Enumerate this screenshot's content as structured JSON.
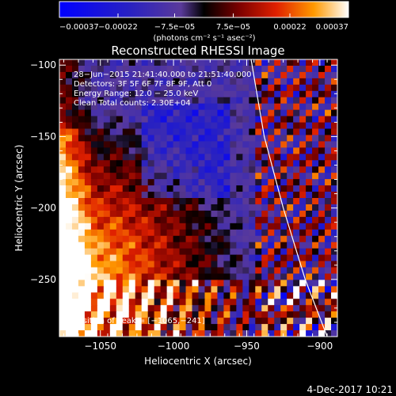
{
  "chart_data": {
    "type": "heatmap",
    "title": "Reconstructed RHESSI Image",
    "xlabel": "Heliocentric X (arcsec)",
    "ylabel": "Heliocentric Y (arcsec)",
    "xlim": [
      -1078,
      -888
    ],
    "ylim": [
      -290,
      -96
    ],
    "xticks": [
      -1050,
      -1000,
      -950,
      -900
    ],
    "xtick_labels": [
      "−1050",
      "−1000",
      "−950",
      "−900"
    ],
    "yticks": [
      -100,
      -150,
      -200,
      -250
    ],
    "ytick_labels": [
      "−100",
      "−150",
      "−200",
      "−250"
    ],
    "colorbar": {
      "min": -0.00037,
      "max": 0.00037,
      "ticks": [
        -0.00037,
        -0.00022,
        -7.5e-05,
        7.5e-05,
        0.00022,
        0.00037
      ],
      "tick_labels": [
        "−0.00037",
        "−0.00022",
        "−7.5e−05",
        "7.5e−05",
        "0.00022",
        "0.00037"
      ],
      "unit_label": "(photons cm⁻² s⁻¹ asec⁻²)"
    },
    "annotations": [
      "28−Jun−2015 21:41:40.000 to 21:51:40.000",
      "Detectors: 3F 5F 6F 7F 8F 9F, Att 0",
      "Energy Range: 12.0 − 25.0 keV",
      "Clean     Total counts: 2.30E+04"
    ],
    "peak_label": "Position of Peak = [−1065,−241]",
    "peak": [
      -1065,
      -241
    ],
    "limb_curve": [
      [
        -947,
        -96
      ],
      [
        -938,
        -150
      ],
      [
        -925,
        -200
      ],
      [
        -910,
        -250
      ],
      [
        -895,
        -290
      ]
    ]
  },
  "footer": {
    "date": "4-Dec-2017 10:21"
  }
}
